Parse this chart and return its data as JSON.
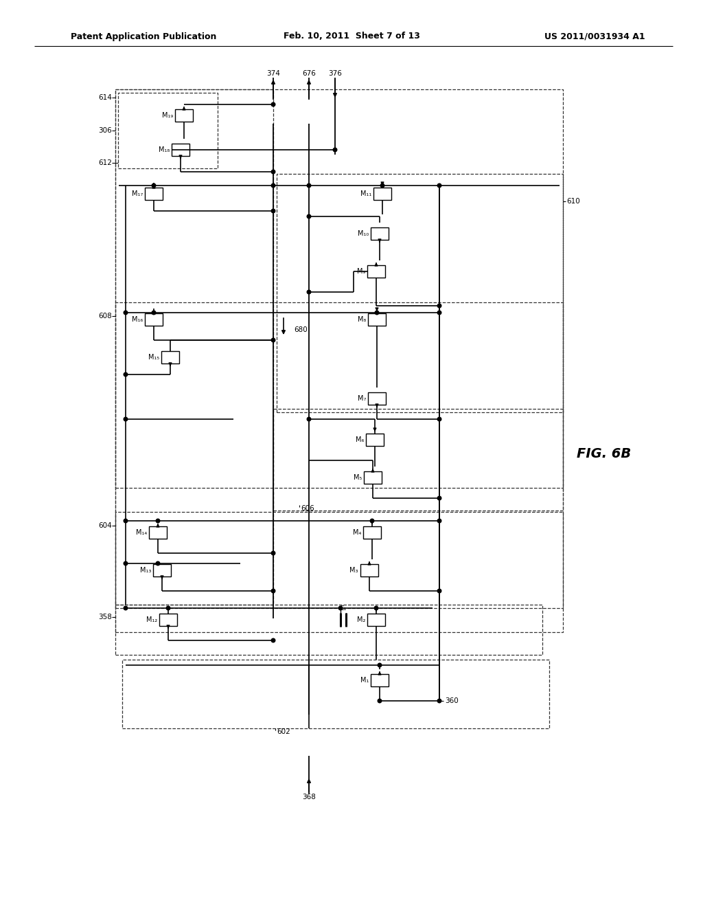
{
  "title_left": "Patent Application Publication",
  "title_mid": "Feb. 10, 2011  Sheet 7 of 13",
  "title_right": "US 2011/0031934 A1",
  "fig_label": "FIG. 6B",
  "background": "#ffffff"
}
